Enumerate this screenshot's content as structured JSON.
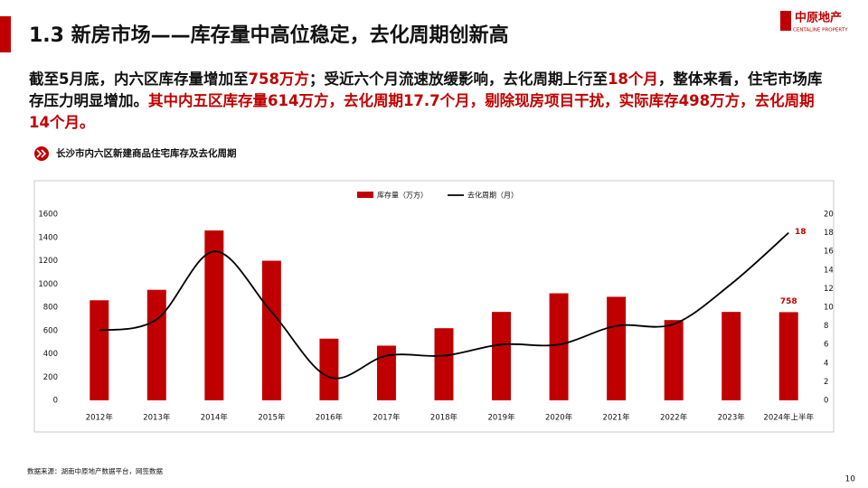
{
  "header": {
    "title": "1.3 新房市场——库存量中高位稳定，去化周期创新高",
    "logo": "中原地产",
    "logo_sub": "CENTALINE PROPERTY"
  },
  "paragraph": [
    {
      "text": "截至5月底，内六区库存量增加至",
      "color": "#111111"
    },
    {
      "text": "758万方",
      "color": "#c00000"
    },
    {
      "text": "；受近六个月流速放缓影响，去化周期上行至",
      "color": "#111111"
    },
    {
      "text": "18个月",
      "color": "#c00000"
    },
    {
      "text": "，整体来看，住宅市场库存压力明显增加。",
      "color": "#111111"
    },
    {
      "text": "其中内五区库存量614万方，去化周期17.7个月，剔除现房项目干扰，实际库存498万方，去化周期14个月。",
      "color": "#c00000"
    }
  ],
  "chart_data": {
    "type": "bar_line",
    "title": "长沙市内六区新建商品住宅库存及去化周期",
    "categories": [
      "2012年",
      "2013年",
      "2014年",
      "2015年",
      "2016年",
      "2017年",
      "2018年",
      "2019年",
      "2020年",
      "2021年",
      "2022年",
      "2023年",
      "2024年上半年"
    ],
    "series": [
      {
        "name": "库存量（万方）",
        "color": "#c00000",
        "type": "bar",
        "values": [
          860,
          950,
          1460,
          1200,
          530,
          470,
          620,
          760,
          920,
          890,
          690,
          760,
          758
        ]
      },
      {
        "name": "去化周期（月）",
        "color": "#000000",
        "type": "line",
        "axis": "y2",
        "values": [
          7.5,
          8.7,
          16,
          9.5,
          2.5,
          4.8,
          4.8,
          6,
          6,
          8,
          8.2,
          12.5,
          18
        ]
      }
    ],
    "ylim": [
      0,
      1600
    ],
    "yticks": [
      0,
      200,
      400,
      600,
      800,
      1000,
      1200,
      1400,
      1600
    ],
    "y2lim": [
      0,
      20
    ],
    "y2ticks": [
      0,
      2,
      4,
      6,
      8,
      10,
      12,
      14,
      16,
      18,
      20
    ],
    "grid": false,
    "label_last": true,
    "legend": "top"
  },
  "source": "数据来源：湖南中原地产数据平台，网签数据",
  "page_number": "10"
}
